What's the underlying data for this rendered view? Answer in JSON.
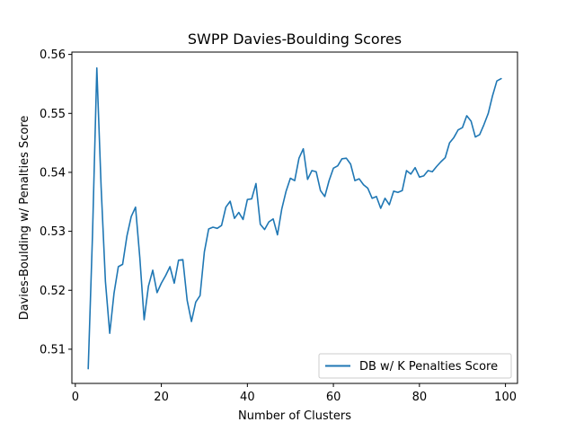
{
  "chart_data": {
    "type": "line",
    "title": "SWPP Davies-Boulding Scores",
    "xlabel": "Number of Clusters",
    "ylabel": "Davies-Boulding w/ Penalties Score",
    "xlim": [
      -0.8,
      102.8
    ],
    "ylim": [
      0.5042,
      0.5604
    ],
    "xticks": [
      0,
      20,
      40,
      60,
      80,
      100
    ],
    "yticks": [
      0.51,
      0.52,
      0.53,
      0.54,
      0.55,
      0.56
    ],
    "xtick_labels": [
      "0",
      "20",
      "40",
      "60",
      "80",
      "100"
    ],
    "ytick_labels": [
      "0.51",
      "0.52",
      "0.53",
      "0.54",
      "0.55",
      "0.56"
    ],
    "grid": false,
    "legend_position": "lower-right",
    "series": [
      {
        "name": "DB w/ K Penalties Score",
        "color": "#1f77b4",
        "x": [
          3,
          4,
          5,
          6,
          7,
          8,
          9,
          10,
          11,
          12,
          13,
          14,
          15,
          16,
          17,
          18,
          19,
          20,
          21,
          22,
          23,
          24,
          25,
          26,
          27,
          28,
          29,
          30,
          31,
          32,
          33,
          34,
          35,
          36,
          37,
          38,
          39,
          40,
          41,
          42,
          43,
          44,
          45,
          46,
          47,
          48,
          49,
          50,
          51,
          52,
          53,
          54,
          55,
          56,
          57,
          58,
          59,
          60,
          61,
          62,
          63,
          64,
          65,
          66,
          67,
          68,
          69,
          70,
          71,
          72,
          73,
          74,
          75,
          76,
          77,
          78,
          79,
          80,
          81,
          82,
          83,
          84,
          85,
          86,
          87,
          88,
          89,
          90,
          91,
          92,
          93,
          94,
          95,
          96,
          97,
          98,
          99
        ],
        "y": [
          0.5067,
          0.5295,
          0.5577,
          0.5375,
          0.5215,
          0.5127,
          0.5195,
          0.524,
          0.5244,
          0.5292,
          0.5325,
          0.5341,
          0.5255,
          0.515,
          0.5207,
          0.5234,
          0.5196,
          0.5212,
          0.5225,
          0.524,
          0.5212,
          0.5251,
          0.5252,
          0.5183,
          0.5147,
          0.518,
          0.5191,
          0.5265,
          0.5304,
          0.5307,
          0.5305,
          0.531,
          0.5341,
          0.5351,
          0.5322,
          0.5332,
          0.532,
          0.5354,
          0.5355,
          0.5381,
          0.5312,
          0.5303,
          0.5316,
          0.5321,
          0.5294,
          0.5338,
          0.5368,
          0.539,
          0.5386,
          0.5424,
          0.544,
          0.5388,
          0.5403,
          0.5401,
          0.5369,
          0.5359,
          0.5386,
          0.5407,
          0.5411,
          0.5423,
          0.5424,
          0.5414,
          0.5386,
          0.5389,
          0.5379,
          0.5373,
          0.5356,
          0.5359,
          0.5339,
          0.5356,
          0.5345,
          0.5368,
          0.5366,
          0.5369,
          0.5403,
          0.5397,
          0.5408,
          0.5392,
          0.5394,
          0.5403,
          0.5401,
          0.541,
          0.5418,
          0.5425,
          0.545,
          0.5459,
          0.5472,
          0.5476,
          0.5496,
          0.5487,
          0.546,
          0.5464,
          0.5481,
          0.55,
          0.553,
          0.5555,
          0.5559
        ]
      }
    ]
  }
}
